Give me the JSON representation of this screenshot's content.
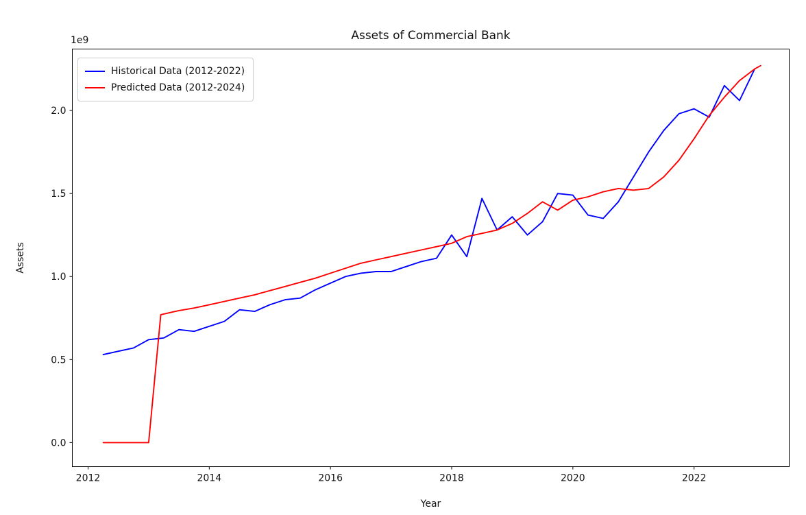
{
  "chart_data": {
    "type": "line",
    "title": "Assets of Commercial Bank",
    "xlabel": "Year",
    "ylabel": "Assets",
    "y_offset_label": "1e9",
    "y_unit": 1000000000,
    "xlim": [
      2011.74,
      2023.57
    ],
    "ylim": [
      -0.145,
      2.37
    ],
    "x_ticks": [
      2012,
      2014,
      2016,
      2018,
      2020,
      2022
    ],
    "y_ticks": [
      0.0,
      0.5,
      1.0,
      1.5,
      2.0
    ],
    "grid": false,
    "legend_position": "upper-left",
    "series": [
      {
        "name": "Historical Data (2012-2022)",
        "color": "#0000ff",
        "x": [
          2012.25,
          2012.5,
          2012.75,
          2013.0,
          2013.25,
          2013.5,
          2013.75,
          2014.0,
          2014.25,
          2014.5,
          2014.75,
          2015.0,
          2015.25,
          2015.5,
          2015.75,
          2016.0,
          2016.25,
          2016.5,
          2016.75,
          2017.0,
          2017.25,
          2017.5,
          2017.75,
          2018.0,
          2018.25,
          2018.5,
          2018.75,
          2019.0,
          2019.25,
          2019.5,
          2019.75,
          2020.0,
          2020.25,
          2020.5,
          2020.75,
          2021.0,
          2021.25,
          2021.5,
          2021.75,
          2022.0,
          2022.25,
          2022.5,
          2022.75,
          2023.0
        ],
        "y": [
          0.53,
          0.55,
          0.57,
          0.62,
          0.63,
          0.68,
          0.67,
          0.7,
          0.73,
          0.8,
          0.79,
          0.83,
          0.86,
          0.87,
          0.92,
          0.96,
          1.0,
          1.02,
          1.03,
          1.03,
          1.06,
          1.09,
          1.11,
          1.25,
          1.12,
          1.47,
          1.28,
          1.36,
          1.25,
          1.33,
          1.5,
          1.49,
          1.37,
          1.35,
          1.45,
          1.6,
          1.75,
          1.88,
          1.98,
          2.01,
          1.96,
          2.15,
          2.06,
          2.25
        ]
      },
      {
        "name": "Predicted Data (2012-2024)",
        "color": "#ff0000",
        "x": [
          2012.25,
          2012.5,
          2012.75,
          2013.0,
          2013.2,
          2013.5,
          2013.75,
          2014.0,
          2014.25,
          2014.5,
          2014.75,
          2015.0,
          2015.25,
          2015.5,
          2015.75,
          2016.0,
          2016.25,
          2016.5,
          2016.75,
          2017.0,
          2017.25,
          2017.5,
          2017.75,
          2018.0,
          2018.25,
          2018.5,
          2018.75,
          2019.0,
          2019.25,
          2019.5,
          2019.75,
          2020.0,
          2020.25,
          2020.5,
          2020.75,
          2021.0,
          2021.25,
          2021.5,
          2021.75,
          2022.0,
          2022.25,
          2022.5,
          2022.75,
          2023.0,
          2023.1
        ],
        "y": [
          0.0,
          0.0,
          0.0,
          0.0,
          0.77,
          0.795,
          0.81,
          0.83,
          0.85,
          0.87,
          0.89,
          0.915,
          0.94,
          0.965,
          0.99,
          1.02,
          1.05,
          1.08,
          1.1,
          1.12,
          1.14,
          1.16,
          1.18,
          1.2,
          1.24,
          1.26,
          1.28,
          1.32,
          1.38,
          1.45,
          1.4,
          1.46,
          1.48,
          1.51,
          1.53,
          1.52,
          1.53,
          1.6,
          1.7,
          1.83,
          1.97,
          2.08,
          2.18,
          2.25,
          2.27
        ]
      }
    ]
  }
}
